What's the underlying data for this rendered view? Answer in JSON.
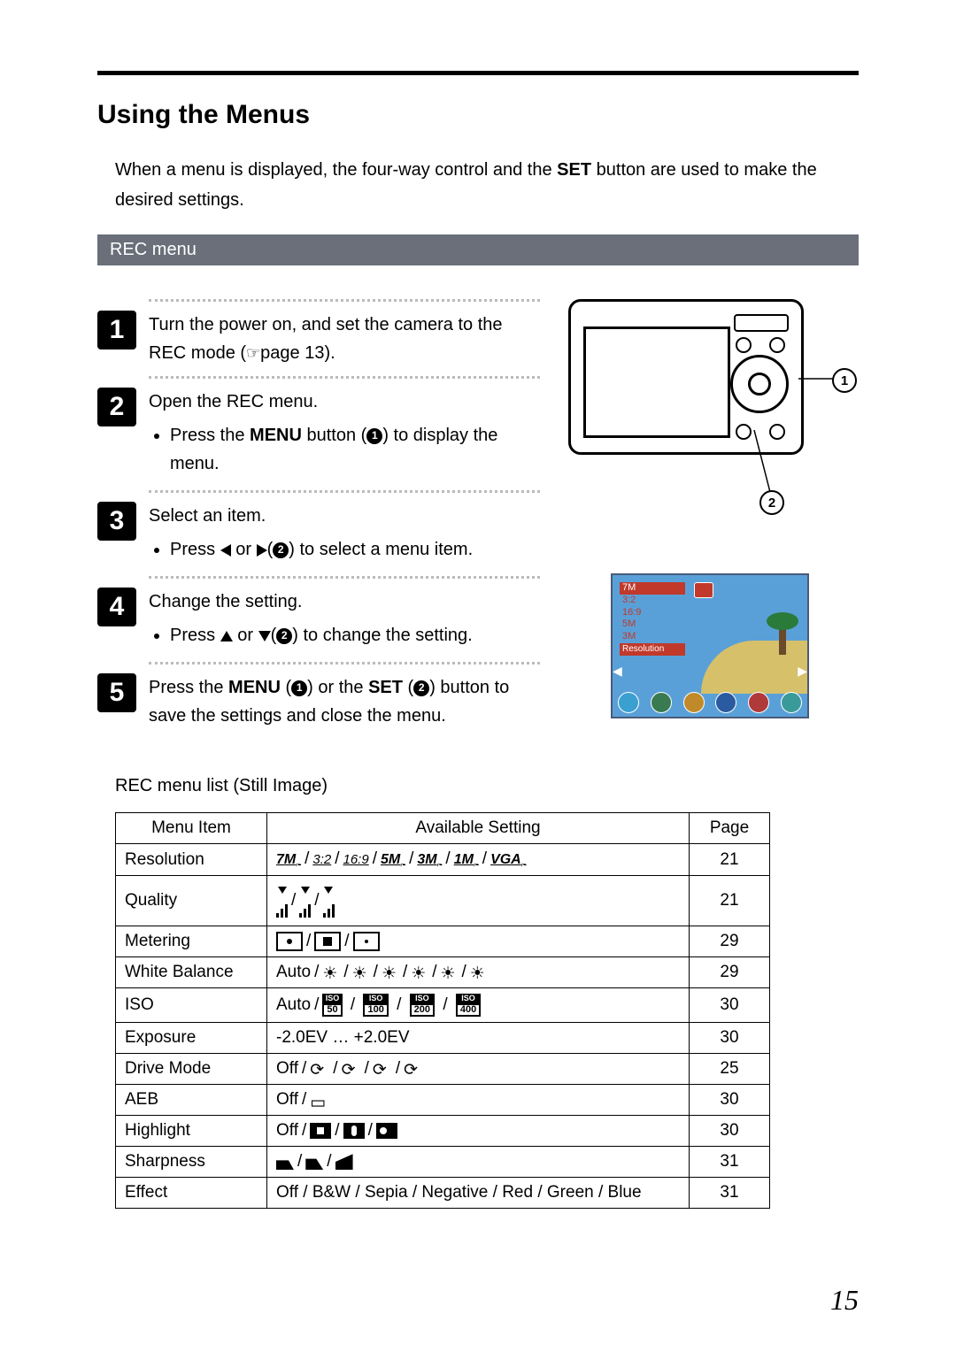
{
  "page_number": "15",
  "title": "Using the Menus",
  "intro_parts": {
    "a": "When a menu is displayed, the four-way control and the ",
    "set": "SET",
    "b": " button are used to make the desired settings."
  },
  "section_bar": "REC menu",
  "callouts": {
    "one": "1",
    "two": "2"
  },
  "steps": [
    {
      "num": "1",
      "lead_a": "Turn the power on, and set the camera to the REC mode (",
      "lead_b": "page 13).",
      "bullets": []
    },
    {
      "num": "2",
      "lead": "Open the REC menu.",
      "bullets": [
        {
          "pre": "Press the ",
          "bold": "MENU",
          "mid": " button (",
          "ref": "1",
          "post": ") to display the menu."
        }
      ]
    },
    {
      "num": "3",
      "lead": "Select an item.",
      "bullets": [
        {
          "pre": "Press ",
          "mid": " or ",
          "ref": "2",
          "post": ") to select a menu item."
        }
      ]
    },
    {
      "num": "4",
      "lead": "Change the setting.",
      "bullets": [
        {
          "pre": "Press ",
          "mid": " or ",
          "ref": "2",
          "post": ") to change the setting."
        }
      ]
    },
    {
      "num": "5",
      "lead_a": "Press the ",
      "bold1": "MENU",
      "mid1": " (",
      "ref1": "1",
      "mid2": ") or the ",
      "bold2": "SET",
      "mid3": " (",
      "ref2": "2",
      "post": ") button to save the settings and close the menu.",
      "bullets": []
    }
  ],
  "subhead": "REC menu list (Still Image)",
  "lcd": {
    "rows": [
      "7M",
      "3:2",
      "16:9",
      "5M",
      "3M"
    ],
    "label": "Resolution",
    "icon_colors": [
      "#3aa0d0",
      "#3a7a50",
      "#c08a2a",
      "#2a5aa0",
      "#b03a3a",
      "#3a9a9a"
    ]
  },
  "table": {
    "headers": [
      "Menu Item",
      "Available Setting",
      "Page"
    ],
    "rows": [
      {
        "item": "Resolution",
        "page": "21",
        "kind": "resolution",
        "opts": [
          "7M",
          "3:2",
          "16:9",
          "5M",
          "3M",
          "1M",
          "VGA"
        ]
      },
      {
        "item": "Quality",
        "page": "21",
        "kind": "quality",
        "opts": [
          3,
          2,
          1
        ]
      },
      {
        "item": "Metering",
        "page": "29",
        "kind": "metering",
        "opts": [
          "center",
          "multi",
          "spot"
        ]
      },
      {
        "item": "White Balance",
        "page": "29",
        "kind": "wb",
        "prefix": "Auto",
        "count": 6
      },
      {
        "item": "ISO",
        "page": "30",
        "kind": "iso",
        "prefix": "Auto",
        "opts": [
          "50",
          "100",
          "200",
          "400"
        ]
      },
      {
        "item": "Exposure",
        "page": "30",
        "kind": "text",
        "text": "-2.0EV  …  +2.0EV"
      },
      {
        "item": "Drive Mode",
        "page": "25",
        "kind": "drive",
        "prefix": "Off",
        "count": 4
      },
      {
        "item": "AEB",
        "page": "30",
        "kind": "aeb",
        "prefix": "Off"
      },
      {
        "item": "Highlight",
        "page": "30",
        "kind": "highlight",
        "prefix": "Off",
        "opts": [
          "a",
          "b",
          "c"
        ]
      },
      {
        "item": "Sharpness",
        "page": "31",
        "kind": "sharp",
        "opts": [
          "a",
          "b",
          "c"
        ]
      },
      {
        "item": "Effect",
        "page": "31",
        "kind": "text",
        "text": "Off / B&W / Sepia / Negative / Red / Green / Blue"
      }
    ]
  }
}
